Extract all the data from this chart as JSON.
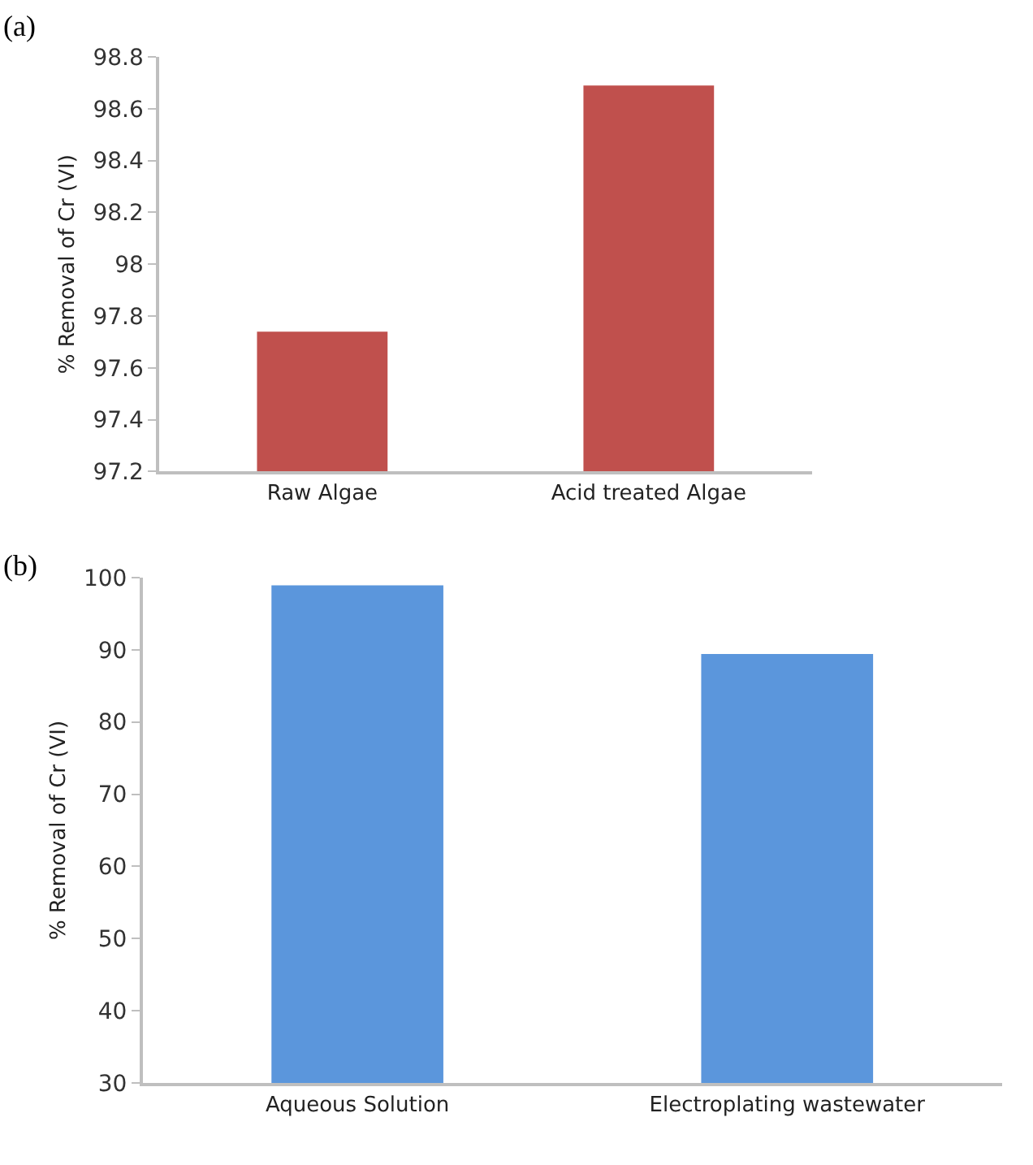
{
  "chart_data": [
    {
      "type": "bar",
      "title": "(a)",
      "ylabel": "% Removal of Cr (VI)",
      "categories": [
        "Raw Algae",
        "Acid treated Algae"
      ],
      "values": [
        97.74,
        98.69
      ],
      "color": "#c0504d",
      "ylim": [
        97.2,
        98.8
      ],
      "yticks": [
        {
          "value": 97.2,
          "label": "97.2"
        },
        {
          "value": 97.4,
          "label": "97.4"
        },
        {
          "value": 97.6,
          "label": "97.6"
        },
        {
          "value": 97.8,
          "label": "97.8"
        },
        98,
        {
          "value": 98.2,
          "label": "98.2"
        },
        {
          "value": 98.4,
          "label": "98.4"
        },
        {
          "value": 98.6,
          "label": "98.6"
        },
        {
          "value": 98.8,
          "label": "98.8"
        }
      ]
    },
    {
      "type": "bar",
      "title": "(b)",
      "ylabel": "% Removal of Cr (VI)",
      "categories": [
        "Aqueous Solution",
        "Electroplating wastewater"
      ],
      "values": [
        98.9,
        89.4
      ],
      "color": "#5b96dc",
      "ylim": [
        30,
        100
      ],
      "yticks": [
        30,
        40,
        50,
        60,
        70,
        80,
        90,
        100
      ]
    }
  ]
}
